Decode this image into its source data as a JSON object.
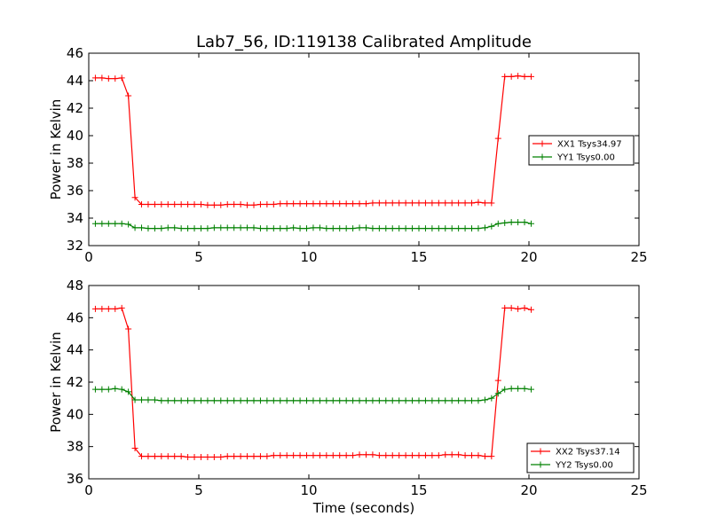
{
  "title": "Lab7_56, ID:119138 Calibrated Amplitude",
  "colors": {
    "red_series": "#ff0000",
    "green_series": "#008000",
    "axes": "#000000",
    "background": "#ffffff"
  },
  "chart_data": [
    {
      "type": "line",
      "title": "Lab7_56, ID:119138 Calibrated Amplitude",
      "xlabel": "",
      "ylabel": "Power in Kelvin",
      "xlim": [
        0,
        25
      ],
      "ylim": [
        32,
        46
      ],
      "xticks": [
        "0",
        "5",
        "10",
        "15",
        "20",
        "25"
      ],
      "yticks": [
        "32",
        "34",
        "36",
        "38",
        "40",
        "42",
        "44",
        "46"
      ],
      "grid": false,
      "legend_position": "right",
      "x": [
        0.3,
        0.6,
        0.9,
        1.2,
        1.5,
        1.8,
        2.1,
        2.4,
        2.7,
        3.0,
        3.3,
        3.6,
        3.9,
        4.2,
        4.5,
        4.8,
        5.1,
        5.4,
        5.7,
        6.0,
        6.3,
        6.6,
        6.9,
        7.2,
        7.5,
        7.8,
        8.1,
        8.4,
        8.7,
        9.0,
        9.3,
        9.6,
        9.9,
        10.2,
        10.5,
        10.8,
        11.1,
        11.4,
        11.7,
        12.0,
        12.3,
        12.6,
        12.9,
        13.2,
        13.5,
        13.8,
        14.1,
        14.4,
        14.7,
        15.0,
        15.3,
        15.6,
        15.9,
        16.2,
        16.5,
        16.8,
        17.1,
        17.4,
        17.7,
        18.0,
        18.3,
        18.6,
        18.9,
        19.2,
        19.5,
        19.8,
        20.1
      ],
      "series": [
        {
          "name": "XX1 Tsys34.97",
          "color": "#ff0000",
          "values": [
            44.2,
            44.2,
            44.15,
            44.15,
            44.2,
            42.9,
            35.5,
            35.0,
            35.0,
            35.0,
            35.0,
            35.0,
            35.0,
            35.0,
            35.0,
            35.0,
            35.0,
            34.95,
            34.95,
            34.95,
            35.0,
            35.0,
            35.0,
            34.95,
            34.95,
            35.0,
            35.0,
            35.0,
            35.05,
            35.05,
            35.05,
            35.05,
            35.05,
            35.05,
            35.05,
            35.05,
            35.05,
            35.05,
            35.05,
            35.05,
            35.05,
            35.05,
            35.1,
            35.1,
            35.1,
            35.1,
            35.1,
            35.1,
            35.1,
            35.1,
            35.1,
            35.1,
            35.1,
            35.1,
            35.1,
            35.1,
            35.1,
            35.1,
            35.15,
            35.1,
            35.1,
            39.8,
            44.3,
            44.3,
            44.35,
            44.3,
            44.3
          ]
        },
        {
          "name": "YY1 Tsys0.00",
          "color": "#008000",
          "values": [
            33.6,
            33.6,
            33.6,
            33.6,
            33.6,
            33.55,
            33.3,
            33.3,
            33.25,
            33.25,
            33.25,
            33.3,
            33.3,
            33.25,
            33.25,
            33.25,
            33.25,
            33.25,
            33.3,
            33.3,
            33.3,
            33.3,
            33.3,
            33.3,
            33.3,
            33.25,
            33.25,
            33.25,
            33.25,
            33.25,
            33.3,
            33.25,
            33.25,
            33.3,
            33.3,
            33.25,
            33.25,
            33.25,
            33.25,
            33.25,
            33.3,
            33.3,
            33.25,
            33.25,
            33.25,
            33.25,
            33.25,
            33.25,
            33.25,
            33.25,
            33.25,
            33.25,
            33.25,
            33.25,
            33.25,
            33.25,
            33.25,
            33.25,
            33.25,
            33.3,
            33.4,
            33.6,
            33.65,
            33.7,
            33.7,
            33.7,
            33.6
          ]
        }
      ]
    },
    {
      "type": "line",
      "title": "",
      "xlabel": "Time (seconds)",
      "ylabel": "Power in Kelvin",
      "xlim": [
        0,
        25
      ],
      "ylim": [
        36,
        48
      ],
      "xticks": [
        "0",
        "5",
        "10",
        "15",
        "20",
        "25"
      ],
      "yticks": [
        "36",
        "38",
        "40",
        "42",
        "44",
        "46",
        "48"
      ],
      "grid": false,
      "legend_position": "lower-right",
      "x": [
        0.3,
        0.6,
        0.9,
        1.2,
        1.5,
        1.8,
        2.1,
        2.4,
        2.7,
        3.0,
        3.3,
        3.6,
        3.9,
        4.2,
        4.5,
        4.8,
        5.1,
        5.4,
        5.7,
        6.0,
        6.3,
        6.6,
        6.9,
        7.2,
        7.5,
        7.8,
        8.1,
        8.4,
        8.7,
        9.0,
        9.3,
        9.6,
        9.9,
        10.2,
        10.5,
        10.8,
        11.1,
        11.4,
        11.7,
        12.0,
        12.3,
        12.6,
        12.9,
        13.2,
        13.5,
        13.8,
        14.1,
        14.4,
        14.7,
        15.0,
        15.3,
        15.6,
        15.9,
        16.2,
        16.5,
        16.8,
        17.1,
        17.4,
        17.7,
        18.0,
        18.3,
        18.6,
        18.9,
        19.2,
        19.5,
        19.8,
        20.1
      ],
      "series": [
        {
          "name": "XX2 Tsys37.14",
          "color": "#ff0000",
          "values": [
            46.55,
            46.55,
            46.55,
            46.55,
            46.6,
            45.3,
            37.9,
            37.4,
            37.4,
            37.4,
            37.4,
            37.4,
            37.4,
            37.4,
            37.35,
            37.35,
            37.35,
            37.35,
            37.35,
            37.35,
            37.4,
            37.4,
            37.4,
            37.4,
            37.4,
            37.4,
            37.4,
            37.45,
            37.45,
            37.45,
            37.45,
            37.45,
            37.45,
            37.45,
            37.45,
            37.45,
            37.45,
            37.45,
            37.45,
            37.45,
            37.5,
            37.5,
            37.5,
            37.45,
            37.45,
            37.45,
            37.45,
            37.45,
            37.45,
            37.45,
            37.45,
            37.45,
            37.45,
            37.5,
            37.5,
            37.5,
            37.45,
            37.45,
            37.45,
            37.4,
            37.4,
            42.1,
            46.6,
            46.6,
            46.55,
            46.6,
            46.5
          ]
        },
        {
          "name": "YY2 Tsys0.00",
          "color": "#008000",
          "values": [
            41.55,
            41.55,
            41.55,
            41.6,
            41.55,
            41.4,
            40.9,
            40.9,
            40.9,
            40.9,
            40.85,
            40.85,
            40.85,
            40.85,
            40.85,
            40.85,
            40.85,
            40.85,
            40.85,
            40.85,
            40.85,
            40.85,
            40.85,
            40.85,
            40.85,
            40.85,
            40.85,
            40.85,
            40.85,
            40.85,
            40.85,
            40.85,
            40.85,
            40.85,
            40.85,
            40.85,
            40.85,
            40.85,
            40.85,
            40.85,
            40.85,
            40.85,
            40.85,
            40.85,
            40.85,
            40.85,
            40.85,
            40.85,
            40.85,
            40.85,
            40.85,
            40.85,
            40.85,
            40.85,
            40.85,
            40.85,
            40.85,
            40.85,
            40.85,
            40.9,
            41.0,
            41.3,
            41.55,
            41.6,
            41.6,
            41.6,
            41.55
          ]
        }
      ]
    }
  ]
}
